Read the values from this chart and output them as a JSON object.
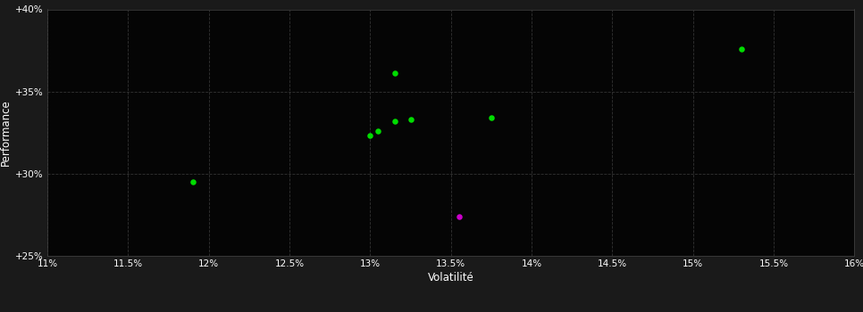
{
  "background_color": "#1a1a1a",
  "plot_bg_color": "#050505",
  "grid_color": "#333333",
  "grid_style": "--",
  "xlabel": "Volatilité",
  "ylabel": "Performance",
  "xlim": [
    0.11,
    0.16
  ],
  "ylim": [
    0.25,
    0.4
  ],
  "xticks": [
    0.11,
    0.115,
    0.12,
    0.125,
    0.13,
    0.135,
    0.14,
    0.145,
    0.15,
    0.155,
    0.16
  ],
  "yticks": [
    0.25,
    0.3,
    0.35,
    0.4
  ],
  "green_points": [
    [
      0.119,
      0.295
    ],
    [
      0.13,
      0.323
    ],
    [
      0.1305,
      0.326
    ],
    [
      0.1315,
      0.332
    ],
    [
      0.1325,
      0.333
    ],
    [
      0.1315,
      0.361
    ],
    [
      0.1375,
      0.334
    ],
    [
      0.153,
      0.376
    ]
  ],
  "magenta_points": [
    [
      0.1355,
      0.274
    ]
  ],
  "green_color": "#00dd00",
  "magenta_color": "#cc00cc",
  "point_size": 22,
  "font_color": "#ffffff",
  "tick_fontsize": 7.5,
  "label_fontsize": 8.5,
  "axis_color": "#444444",
  "grid_linewidth": 0.6
}
